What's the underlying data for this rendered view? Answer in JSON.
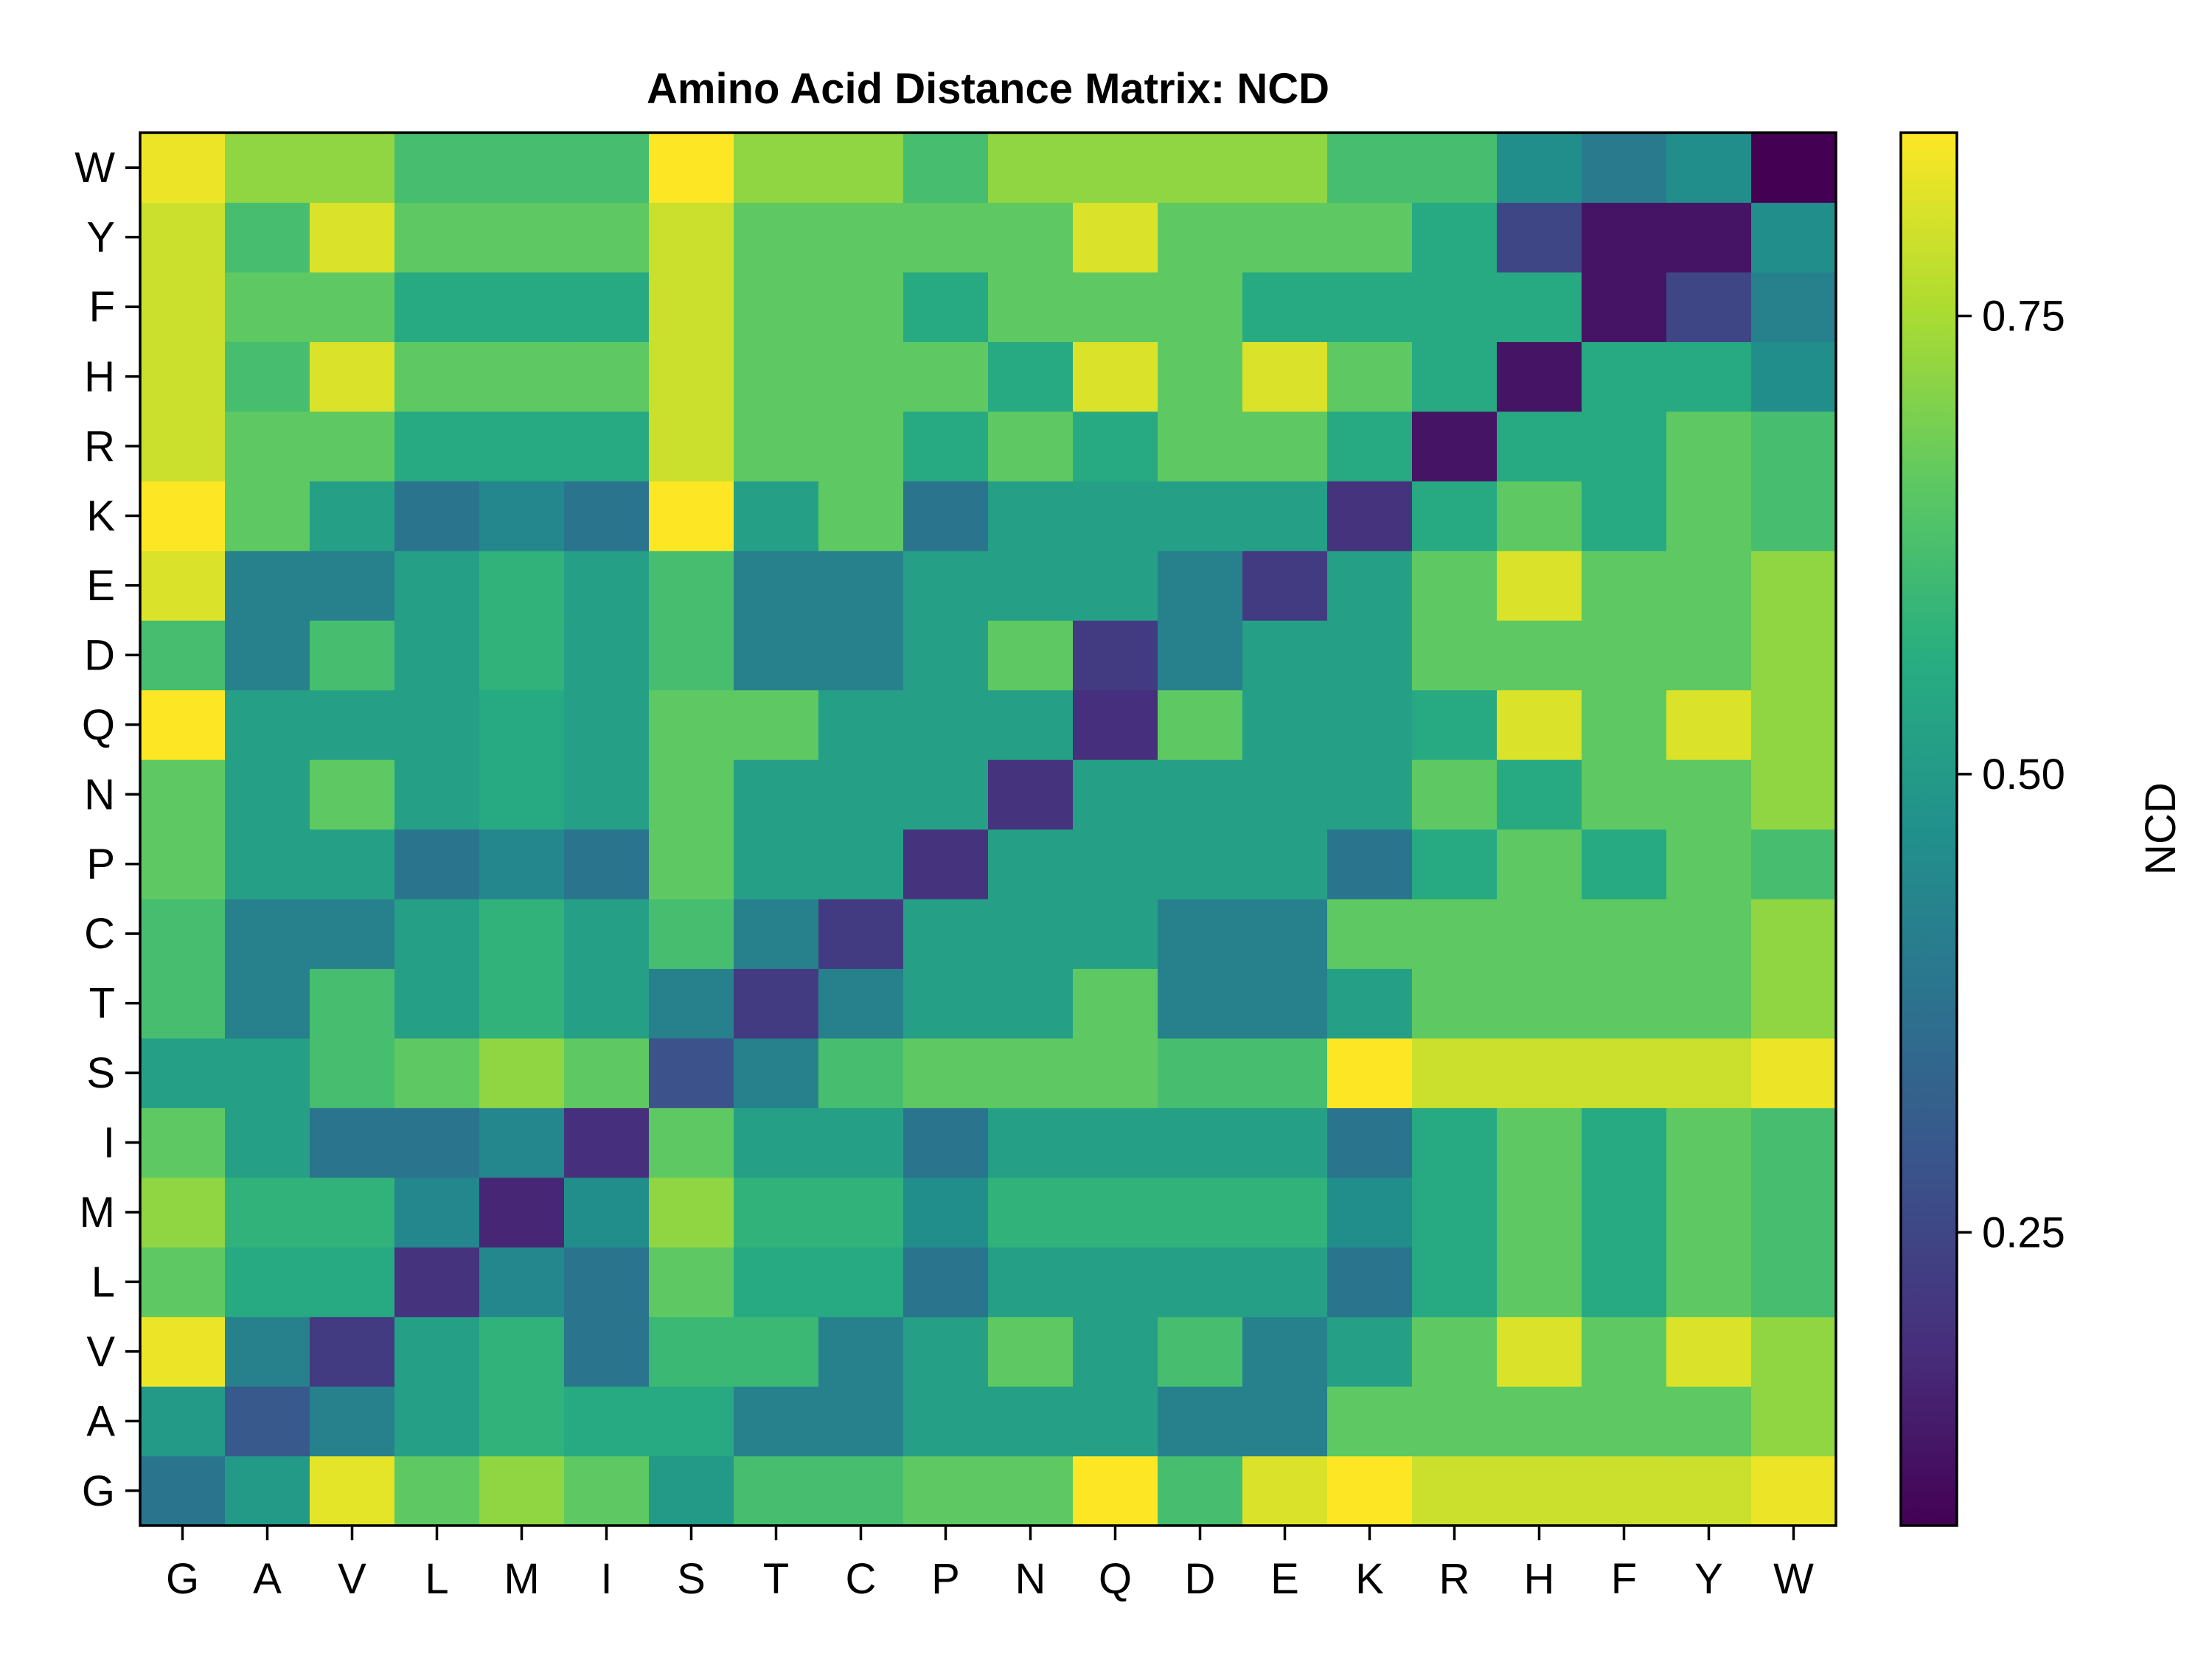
{
  "chart_data": {
    "type": "heatmap",
    "title": "Amino Acid Distance Matrix: NCD",
    "x_categories": [
      "G",
      "A",
      "V",
      "L",
      "M",
      "I",
      "S",
      "T",
      "C",
      "P",
      "N",
      "Q",
      "D",
      "E",
      "K",
      "R",
      "H",
      "F",
      "Y",
      "W"
    ],
    "y_categories": [
      "G",
      "A",
      "V",
      "L",
      "M",
      "I",
      "S",
      "T",
      "C",
      "P",
      "N",
      "Q",
      "D",
      "E",
      "K",
      "R",
      "H",
      "F",
      "Y",
      "W"
    ],
    "matrix": [
      [
        0.38,
        0.5,
        0.82,
        0.66,
        0.72,
        0.66,
        0.5,
        0.62,
        0.62,
        0.66,
        0.66,
        0.85,
        0.62,
        0.81,
        0.85,
        0.79,
        0.79,
        0.79,
        0.79,
        0.83
      ],
      [
        0.5,
        0.3,
        0.42,
        0.52,
        0.58,
        0.55,
        0.55,
        0.42,
        0.42,
        0.52,
        0.52,
        0.52,
        0.42,
        0.42,
        0.66,
        0.66,
        0.66,
        0.66,
        0.66,
        0.72
      ],
      [
        0.83,
        0.42,
        0.22,
        0.52,
        0.58,
        0.38,
        0.6,
        0.6,
        0.42,
        0.52,
        0.66,
        0.52,
        0.62,
        0.42,
        0.52,
        0.66,
        0.81,
        0.66,
        0.81,
        0.72
      ],
      [
        0.66,
        0.55,
        0.55,
        0.2,
        0.44,
        0.38,
        0.66,
        0.55,
        0.55,
        0.38,
        0.52,
        0.52,
        0.52,
        0.52,
        0.38,
        0.55,
        0.66,
        0.55,
        0.66,
        0.62
      ],
      [
        0.72,
        0.58,
        0.58,
        0.44,
        0.17,
        0.46,
        0.72,
        0.58,
        0.58,
        0.46,
        0.58,
        0.58,
        0.58,
        0.58,
        0.46,
        0.55,
        0.66,
        0.55,
        0.66,
        0.62
      ],
      [
        0.66,
        0.52,
        0.38,
        0.38,
        0.44,
        0.19,
        0.66,
        0.52,
        0.52,
        0.38,
        0.52,
        0.52,
        0.52,
        0.52,
        0.38,
        0.55,
        0.66,
        0.55,
        0.66,
        0.62
      ],
      [
        0.52,
        0.52,
        0.62,
        0.66,
        0.72,
        0.66,
        0.28,
        0.42,
        0.62,
        0.66,
        0.66,
        0.66,
        0.62,
        0.62,
        0.85,
        0.79,
        0.79,
        0.79,
        0.79,
        0.83
      ],
      [
        0.62,
        0.42,
        0.62,
        0.52,
        0.58,
        0.52,
        0.42,
        0.22,
        0.42,
        0.52,
        0.52,
        0.66,
        0.42,
        0.42,
        0.52,
        0.66,
        0.66,
        0.66,
        0.66,
        0.72
      ],
      [
        0.62,
        0.42,
        0.42,
        0.52,
        0.58,
        0.52,
        0.62,
        0.42,
        0.22,
        0.52,
        0.52,
        0.52,
        0.42,
        0.42,
        0.66,
        0.66,
        0.66,
        0.66,
        0.66,
        0.72
      ],
      [
        0.66,
        0.52,
        0.52,
        0.38,
        0.44,
        0.38,
        0.66,
        0.52,
        0.52,
        0.2,
        0.52,
        0.52,
        0.52,
        0.52,
        0.38,
        0.55,
        0.66,
        0.55,
        0.66,
        0.62
      ],
      [
        0.66,
        0.52,
        0.66,
        0.52,
        0.55,
        0.52,
        0.66,
        0.52,
        0.52,
        0.52,
        0.2,
        0.52,
        0.52,
        0.52,
        0.52,
        0.66,
        0.55,
        0.66,
        0.66,
        0.72
      ],
      [
        0.85,
        0.52,
        0.52,
        0.52,
        0.55,
        0.52,
        0.66,
        0.66,
        0.52,
        0.52,
        0.52,
        0.19,
        0.66,
        0.52,
        0.52,
        0.55,
        0.81,
        0.66,
        0.81,
        0.72
      ],
      [
        0.62,
        0.42,
        0.62,
        0.52,
        0.58,
        0.52,
        0.62,
        0.42,
        0.42,
        0.52,
        0.66,
        0.22,
        0.42,
        0.52,
        0.52,
        0.66,
        0.66,
        0.66,
        0.66,
        0.72
      ],
      [
        0.81,
        0.42,
        0.42,
        0.52,
        0.58,
        0.52,
        0.62,
        0.42,
        0.42,
        0.52,
        0.52,
        0.52,
        0.42,
        0.22,
        0.52,
        0.66,
        0.81,
        0.66,
        0.66,
        0.72
      ],
      [
        0.85,
        0.66,
        0.52,
        0.38,
        0.44,
        0.38,
        0.85,
        0.52,
        0.66,
        0.38,
        0.52,
        0.52,
        0.52,
        0.52,
        0.2,
        0.55,
        0.66,
        0.55,
        0.66,
        0.62
      ],
      [
        0.79,
        0.66,
        0.66,
        0.55,
        0.55,
        0.55,
        0.79,
        0.66,
        0.66,
        0.55,
        0.66,
        0.55,
        0.66,
        0.66,
        0.55,
        0.13,
        0.55,
        0.55,
        0.66,
        0.62
      ],
      [
        0.79,
        0.62,
        0.81,
        0.66,
        0.66,
        0.66,
        0.79,
        0.66,
        0.66,
        0.66,
        0.55,
        0.81,
        0.66,
        0.81,
        0.66,
        0.55,
        0.13,
        0.55,
        0.55,
        0.46
      ],
      [
        0.79,
        0.66,
        0.66,
        0.55,
        0.55,
        0.55,
        0.79,
        0.66,
        0.66,
        0.55,
        0.66,
        0.66,
        0.66,
        0.55,
        0.55,
        0.55,
        0.55,
        0.13,
        0.25,
        0.42
      ],
      [
        0.79,
        0.62,
        0.81,
        0.66,
        0.66,
        0.66,
        0.79,
        0.66,
        0.66,
        0.66,
        0.66,
        0.81,
        0.66,
        0.66,
        0.66,
        0.55,
        0.25,
        0.13,
        0.13,
        0.46
      ],
      [
        0.83,
        0.72,
        0.72,
        0.62,
        0.62,
        0.62,
        0.85,
        0.72,
        0.72,
        0.62,
        0.72,
        0.72,
        0.72,
        0.72,
        0.62,
        0.62,
        0.46,
        0.4,
        0.46,
        0.09
      ]
    ],
    "matrix_order": "rows listed from bottom (G) to top (W); columns left (G) to right (W)",
    "colorbar": {
      "label": "NCD",
      "min": 0.09,
      "max": 0.85,
      "ticks": [
        0.25,
        0.5,
        0.75
      ],
      "tick_labels": [
        "0.25",
        "0.50",
        "0.75"
      ],
      "colormap": "viridis"
    }
  }
}
